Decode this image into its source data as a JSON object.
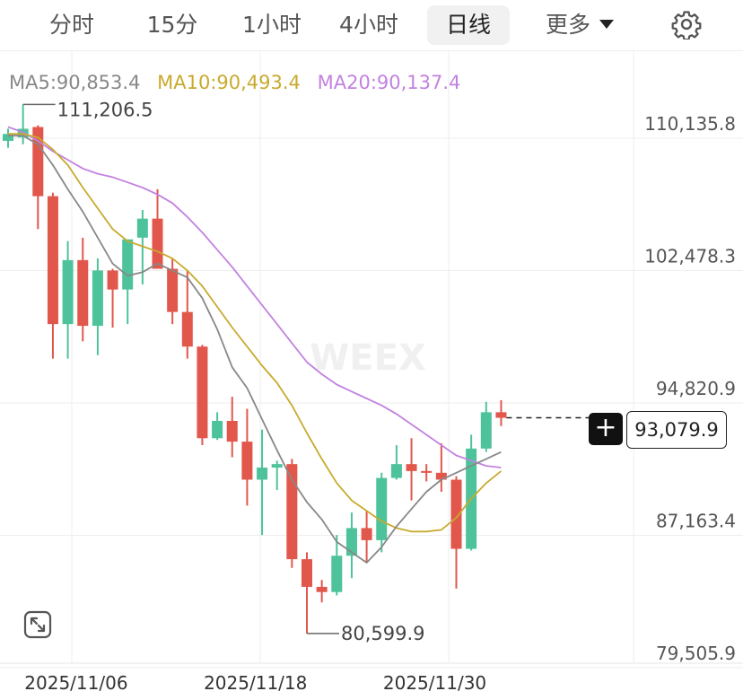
{
  "tabs": [
    {
      "label": "分时",
      "active": false
    },
    {
      "label": "15分",
      "active": false
    },
    {
      "label": "1小时",
      "active": false
    },
    {
      "label": "4小时",
      "active": false
    },
    {
      "label": "日线",
      "active": true
    },
    {
      "label": "更多",
      "active": false,
      "dropdown": true
    }
  ],
  "settings_icon": "gear-icon",
  "expand_icon": "expand-icon",
  "watermark": "WEEX",
  "legend": {
    "ma5": "MA5:90,853.4",
    "ma10": "MA10:90,493.4",
    "ma20": "MA20:90,137.4"
  },
  "colors": {
    "up": "#4ec39b",
    "down": "#e2574c",
    "ma5": "#888888",
    "ma10": "#c8aa2e",
    "ma20": "#c282e0",
    "grid": "#eeeeee",
    "axis_text": "#555555"
  },
  "current_price": {
    "label": "93,079.9",
    "value": 93079.9
  },
  "chart_data": {
    "type": "candlestick",
    "ylim": [
      79505.9,
      110135.8
    ],
    "y_ticks": [
      {
        "label": "110,135.8",
        "value": 110135.8
      },
      {
        "label": "102,478.3",
        "value": 102478.3
      },
      {
        "label": "94,820.9",
        "value": 94820.9
      },
      {
        "label": "87,163.4",
        "value": 87163.4
      },
      {
        "label": "79,505.9",
        "value": 79505.9
      }
    ],
    "x_ticks": [
      {
        "label": "2025/11/06",
        "index": 4.5
      },
      {
        "label": "2025/11/18",
        "index": 16.5
      },
      {
        "label": "2025/11/30",
        "index": 28.5
      }
    ],
    "annotations": [
      {
        "label": "111,206.5",
        "value": 111206.5,
        "index": 1
      },
      {
        "label": "80,599.9",
        "value": 80599.9,
        "index": 20
      }
    ],
    "candles": [
      {
        "o": 109100,
        "h": 109800,
        "l": 108700,
        "c": 109500
      },
      {
        "o": 109300,
        "h": 111206.5,
        "l": 108900,
        "c": 109800
      },
      {
        "o": 109900,
        "h": 110000,
        "l": 104000,
        "c": 105900
      },
      {
        "o": 105900,
        "h": 106100,
        "l": 96500,
        "c": 98500
      },
      {
        "o": 98500,
        "h": 103300,
        "l": 96500,
        "c": 102200
      },
      {
        "o": 102200,
        "h": 103500,
        "l": 97500,
        "c": 98400
      },
      {
        "o": 98400,
        "h": 102300,
        "l": 96700,
        "c": 101600
      },
      {
        "o": 101600,
        "h": 101700,
        "l": 98300,
        "c": 100500
      },
      {
        "o": 100500,
        "h": 103200,
        "l": 98500,
        "c": 103400
      },
      {
        "o": 103500,
        "h": 105100,
        "l": 100800,
        "c": 104600
      },
      {
        "o": 104600,
        "h": 106300,
        "l": 101700,
        "c": 101700
      },
      {
        "o": 101700,
        "h": 102300,
        "l": 98500,
        "c": 99200
      },
      {
        "o": 99200,
        "h": 101600,
        "l": 96500,
        "c": 97200
      },
      {
        "o": 97200,
        "h": 97300,
        "l": 91500,
        "c": 91900
      },
      {
        "o": 91900,
        "h": 93400,
        "l": 91800,
        "c": 92900
      },
      {
        "o": 92900,
        "h": 94300,
        "l": 90800,
        "c": 91700
      },
      {
        "o": 91700,
        "h": 93600,
        "l": 88000,
        "c": 89500
      },
      {
        "o": 89500,
        "h": 92400,
        "l": 86300,
        "c": 90200
      },
      {
        "o": 90200,
        "h": 90600,
        "l": 88900,
        "c": 90400
      },
      {
        "o": 90400,
        "h": 90700,
        "l": 84400,
        "c": 84900
      },
      {
        "o": 84900,
        "h": 85300,
        "l": 80599.9,
        "c": 83300
      },
      {
        "o": 83300,
        "h": 83700,
        "l": 82400,
        "c": 83000
      },
      {
        "o": 83000,
        "h": 86300,
        "l": 82800,
        "c": 85100
      },
      {
        "o": 85100,
        "h": 87600,
        "l": 83800,
        "c": 86700
      },
      {
        "o": 86700,
        "h": 87700,
        "l": 84700,
        "c": 86000
      },
      {
        "o": 86000,
        "h": 89900,
        "l": 85300,
        "c": 89600
      },
      {
        "o": 89600,
        "h": 91500,
        "l": 89500,
        "c": 90400
      },
      {
        "o": 90400,
        "h": 91900,
        "l": 88300,
        "c": 90000
      },
      {
        "o": 90000,
        "h": 90400,
        "l": 89400,
        "c": 89900
      },
      {
        "o": 89900,
        "h": 91600,
        "l": 88800,
        "c": 89500
      },
      {
        "o": 89500,
        "h": 89700,
        "l": 83200,
        "c": 85500
      },
      {
        "o": 85500,
        "h": 92100,
        "l": 85400,
        "c": 91300
      },
      {
        "o": 91300,
        "h": 94000,
        "l": 91100,
        "c": 93400
      },
      {
        "o": 93400,
        "h": 94100,
        "l": 92600,
        "c": 93079.9
      }
    ],
    "ma5": [
      109400,
      109400,
      108900,
      107700,
      106300,
      105000,
      103500,
      102000,
      101300,
      101500,
      102000,
      101600,
      101200,
      100000,
      98200,
      96000,
      94800,
      93000,
      91200,
      89500,
      88200,
      87200,
      85900,
      85300,
      84700,
      85600,
      86800,
      87800,
      88800,
      89500,
      89900,
      90300,
      90700,
      91100
    ],
    "ma10": [
      109500,
      109500,
      109300,
      108600,
      107700,
      106400,
      105200,
      104000,
      103300,
      103000,
      102700,
      102300,
      101600,
      100700,
      99500,
      98300,
      97200,
      96100,
      95100,
      93800,
      92200,
      90700,
      89300,
      88300,
      87700,
      87100,
      86700,
      86500,
      86500,
      86600,
      87300,
      88400,
      89300,
      90000
    ],
    "ma20": [
      109900,
      109600,
      109100,
      108500,
      108000,
      107500,
      107200,
      107000,
      106700,
      106400,
      106000,
      105500,
      104700,
      103800,
      102800,
      101800,
      100700,
      99600,
      98500,
      97400,
      96300,
      95600,
      95000,
      94600,
      94200,
      93800,
      93300,
      92700,
      92100,
      91500,
      90900,
      90600,
      90300,
      90200
    ]
  }
}
